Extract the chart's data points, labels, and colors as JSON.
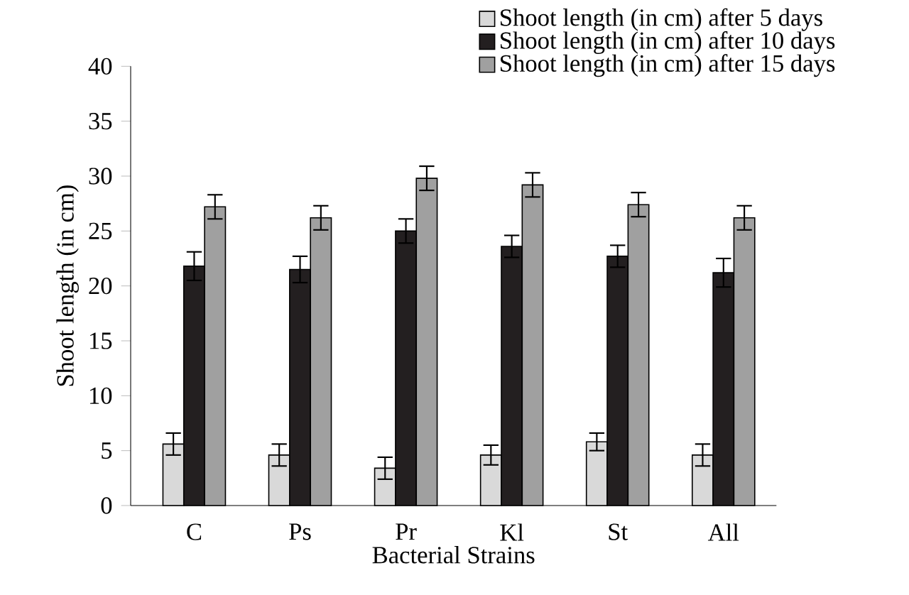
{
  "chart_data": {
    "type": "bar",
    "xlabel": "Bacterial Strains",
    "ylabel": "Shoot length (in cm)",
    "categories": [
      "C",
      "Ps",
      "Pr",
      "Kl",
      "St",
      "All"
    ],
    "series": [
      {
        "name": "Shoot length (in cm) after 5 days",
        "color": "#d9d9d9",
        "values": [
          5.6,
          4.6,
          3.4,
          4.6,
          5.8,
          4.6
        ],
        "errors": [
          1.0,
          1.0,
          1.0,
          0.9,
          0.8,
          1.0
        ]
      },
      {
        "name": "Shoot length (in cm) after 10 days",
        "color": "#231f20",
        "values": [
          21.8,
          21.5,
          25.0,
          23.6,
          22.7,
          21.2
        ],
        "errors": [
          1.3,
          1.2,
          1.1,
          1.0,
          1.0,
          1.3
        ]
      },
      {
        "name": "Shoot length (in cm) after 15 days",
        "color": "#a0a0a0",
        "values": [
          27.2,
          26.2,
          29.8,
          29.2,
          27.4,
          26.2
        ],
        "errors": [
          1.1,
          1.1,
          1.1,
          1.1,
          1.1,
          1.1
        ]
      }
    ],
    "ylim": [
      0,
      40
    ],
    "yticks": [
      0,
      5,
      10,
      15,
      20,
      25,
      30,
      35,
      40
    ],
    "legend": "top right"
  }
}
